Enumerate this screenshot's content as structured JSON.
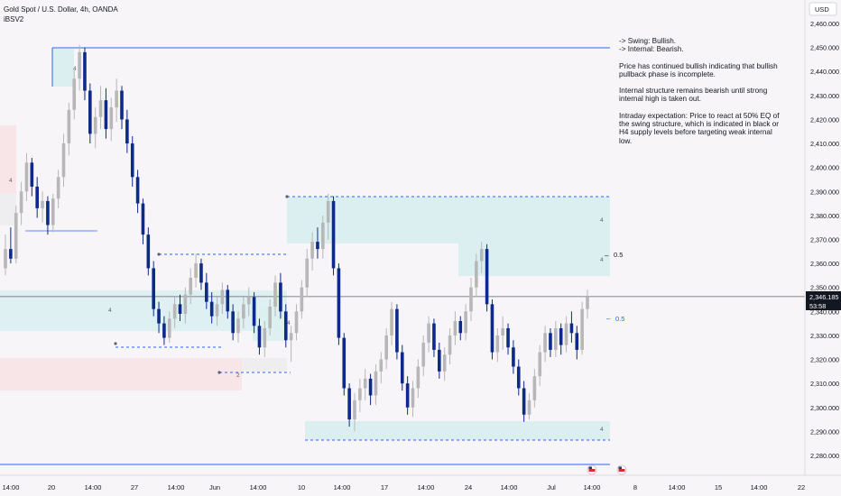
{
  "header": {
    "symbol_line": "Gold Spot / U.S. Dollar, 4h, OANDA",
    "indicator": "iBSV2"
  },
  "currency": "USD",
  "notes": [
    "-> Swing:  Bullish.\n-> Internal:  Bearish.",
    "Price has continued bullish indicating that bullish pullback phase is incomplete.",
    "Internal structure remains bearish until strong internal high is taken out.",
    "Intraday expectation: Price to react at 50% EQ of the swing structure, which is indicated in black or H4 supply levels before targeting weak internal low."
  ],
  "price_label": {
    "price": "2,346.185",
    "countdown": "53:58"
  },
  "eq_labels": {
    "black": "0.5",
    "blue": "0.5"
  },
  "zone_marks": [
    "4",
    "4",
    "4",
    "4",
    "4",
    "4",
    "4",
    "2"
  ],
  "colors": {
    "bull": "#b7b7b7",
    "bear": "#0d2a8a",
    "demand_zone": "#dceff0",
    "supply_zone_pink": "#f6e3e6",
    "grey_zone": "#e8e8ea",
    "blue_line": "#2962ff",
    "current_price_line": "#5d606b"
  },
  "chart_data": {
    "type": "candlestick",
    "ylim": [
      2275,
      2465
    ],
    "y_ticks": [
      2280,
      2290,
      2300,
      2310,
      2320,
      2330,
      2340,
      2350,
      2360,
      2370,
      2380,
      2390,
      2400,
      2410,
      2420,
      2430,
      2440,
      2450,
      2460
    ],
    "y_tick_labels": [
      "2,280.000",
      "2,290.000",
      "2,300.000",
      "2,310.000",
      "2,320.000",
      "2,330.000",
      "2,340.000",
      "2,350.000",
      "2,360.000",
      "2,370.000",
      "2,380.000",
      "2,390.000",
      "2,400.000",
      "2,410.000",
      "2,420.000",
      "2,430.000",
      "2,440.000",
      "2,450.000",
      "2,460.000"
    ],
    "x_ticks": [
      "14:00",
      "20",
      "14:00",
      "27",
      "14:00",
      "Jun",
      "14:00",
      "10",
      "14:00",
      "17",
      "14:00",
      "24",
      "14:00",
      "Jul",
      "14:00",
      "8",
      "14:00",
      "15",
      "14:00",
      "22"
    ],
    "swing_high": 2450,
    "swing_low": 2288,
    "last_price": 2346.185,
    "candles": [
      [
        2358,
        2372,
        2355,
        2366
      ],
      [
        2366,
        2375,
        2360,
        2362
      ],
      [
        2362,
        2384,
        2360,
        2381
      ],
      [
        2381,
        2394,
        2376,
        2390
      ],
      [
        2390,
        2406,
        2386,
        2402
      ],
      [
        2402,
        2404,
        2388,
        2392
      ],
      [
        2392,
        2396,
        2379,
        2383
      ],
      [
        2383,
        2390,
        2377,
        2386
      ],
      [
        2386,
        2388,
        2372,
        2376
      ],
      [
        2376,
        2389,
        2373,
        2387
      ],
      [
        2387,
        2399,
        2383,
        2396
      ],
      [
        2396,
        2414,
        2392,
        2410
      ],
      [
        2410,
        2427,
        2405,
        2424
      ],
      [
        2424,
        2441,
        2420,
        2437
      ],
      [
        2437,
        2451,
        2432,
        2448
      ],
      [
        2448,
        2450,
        2428,
        2432
      ],
      [
        2432,
        2435,
        2410,
        2414
      ],
      [
        2414,
        2425,
        2408,
        2421
      ],
      [
        2421,
        2434,
        2416,
        2428
      ],
      [
        2428,
        2433,
        2412,
        2416
      ],
      [
        2416,
        2429,
        2411,
        2425
      ],
      [
        2425,
        2437,
        2419,
        2432
      ],
      [
        2432,
        2434,
        2416,
        2420
      ],
      [
        2420,
        2424,
        2406,
        2410
      ],
      [
        2410,
        2413,
        2392,
        2396
      ],
      [
        2396,
        2399,
        2381,
        2385
      ],
      [
        2385,
        2387,
        2368,
        2372
      ],
      [
        2372,
        2375,
        2355,
        2358
      ],
      [
        2358,
        2361,
        2338,
        2341
      ],
      [
        2341,
        2344,
        2331,
        2335
      ],
      [
        2335,
        2338,
        2326,
        2329
      ],
      [
        2329,
        2340,
        2327,
        2337
      ],
      [
        2337,
        2346,
        2333,
        2343
      ],
      [
        2343,
        2347,
        2336,
        2339
      ],
      [
        2339,
        2350,
        2335,
        2347
      ],
      [
        2347,
        2358,
        2343,
        2354
      ],
      [
        2354,
        2364,
        2350,
        2360
      ],
      [
        2360,
        2362,
        2349,
        2352
      ],
      [
        2352,
        2356,
        2341,
        2344
      ],
      [
        2344,
        2348,
        2335,
        2338
      ],
      [
        2338,
        2346,
        2334,
        2343
      ],
      [
        2343,
        2352,
        2339,
        2349
      ],
      [
        2349,
        2351,
        2337,
        2340
      ],
      [
        2340,
        2343,
        2328,
        2331
      ],
      [
        2331,
        2340,
        2327,
        2337
      ],
      [
        2337,
        2346,
        2333,
        2343
      ],
      [
        2343,
        2350,
        2338,
        2346
      ],
      [
        2346,
        2348,
        2331,
        2334
      ],
      [
        2334,
        2337,
        2322,
        2325
      ],
      [
        2325,
        2336,
        2321,
        2333
      ],
      [
        2333,
        2345,
        2330,
        2342
      ],
      [
        2342,
        2355,
        2338,
        2352
      ],
      [
        2352,
        2356,
        2337,
        2340
      ],
      [
        2340,
        2343,
        2325,
        2328
      ],
      [
        2328,
        2334,
        2319,
        2331
      ],
      [
        2331,
        2343,
        2328,
        2340
      ],
      [
        2340,
        2353,
        2337,
        2350
      ],
      [
        2350,
        2366,
        2346,
        2362
      ],
      [
        2362,
        2373,
        2357,
        2369
      ],
      [
        2369,
        2375,
        2362,
        2366
      ],
      [
        2366,
        2380,
        2362,
        2377
      ],
      [
        2377,
        2389,
        2370,
        2386
      ],
      [
        2386,
        2388,
        2355,
        2358
      ],
      [
        2358,
        2360,
        2326,
        2329
      ],
      [
        2329,
        2331,
        2305,
        2308
      ],
      [
        2308,
        2310,
        2292,
        2295
      ],
      [
        2295,
        2306,
        2290,
        2303
      ],
      [
        2303,
        2312,
        2298,
        2308
      ],
      [
        2308,
        2316,
        2303,
        2312
      ],
      [
        2312,
        2314,
        2301,
        2305
      ],
      [
        2305,
        2318,
        2301,
        2315
      ],
      [
        2315,
        2323,
        2310,
        2320
      ],
      [
        2320,
        2333,
        2316,
        2330
      ],
      [
        2330,
        2344,
        2326,
        2341
      ],
      [
        2341,
        2343,
        2320,
        2323
      ],
      [
        2323,
        2326,
        2307,
        2310
      ],
      [
        2310,
        2313,
        2297,
        2300
      ],
      [
        2300,
        2311,
        2296,
        2308
      ],
      [
        2308,
        2320,
        2304,
        2317
      ],
      [
        2317,
        2330,
        2313,
        2327
      ],
      [
        2327,
        2338,
        2323,
        2335
      ],
      [
        2335,
        2337,
        2321,
        2324
      ],
      [
        2324,
        2327,
        2312,
        2315
      ],
      [
        2315,
        2325,
        2311,
        2322
      ],
      [
        2322,
        2333,
        2318,
        2330
      ],
      [
        2330,
        2340,
        2326,
        2336
      ],
      [
        2336,
        2338,
        2328,
        2331
      ],
      [
        2331,
        2343,
        2328,
        2340
      ],
      [
        2340,
        2354,
        2336,
        2350
      ],
      [
        2350,
        2364,
        2346,
        2361
      ],
      [
        2361,
        2369,
        2356,
        2366
      ],
      [
        2366,
        2368,
        2340,
        2343
      ],
      [
        2343,
        2345,
        2320,
        2323
      ],
      [
        2323,
        2333,
        2319,
        2330
      ],
      [
        2330,
        2338,
        2324,
        2333
      ],
      [
        2333,
        2335,
        2322,
        2325
      ],
      [
        2325,
        2328,
        2314,
        2317
      ],
      [
        2317,
        2320,
        2305,
        2308
      ],
      [
        2308,
        2311,
        2294,
        2297
      ],
      [
        2297,
        2306,
        2295,
        2303
      ],
      [
        2303,
        2316,
        2300,
        2313
      ],
      [
        2313,
        2326,
        2309,
        2323
      ],
      [
        2323,
        2334,
        2319,
        2331
      ],
      [
        2331,
        2333,
        2321,
        2324
      ],
      [
        2324,
        2336,
        2321,
        2333
      ],
      [
        2333,
        2335,
        2322,
        2326
      ],
      [
        2326,
        2338,
        2323,
        2335
      ],
      [
        2335,
        2340,
        2327,
        2331
      ],
      [
        2331,
        2334,
        2320,
        2324
      ],
      [
        2324,
        2344,
        2322,
        2341
      ],
      [
        2341,
        2349,
        2337,
        2346
      ]
    ]
  }
}
